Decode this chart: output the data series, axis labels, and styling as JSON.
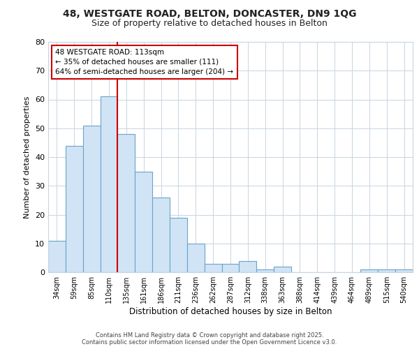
{
  "title_line1": "48, WESTGATE ROAD, BELTON, DONCASTER, DN9 1QG",
  "title_line2": "Size of property relative to detached houses in Belton",
  "xlabel": "Distribution of detached houses by size in Belton",
  "ylabel": "Number of detached properties",
  "categories": [
    "34sqm",
    "59sqm",
    "85sqm",
    "110sqm",
    "135sqm",
    "161sqm",
    "186sqm",
    "211sqm",
    "236sqm",
    "262sqm",
    "287sqm",
    "312sqm",
    "338sqm",
    "363sqm",
    "388sqm",
    "414sqm",
    "439sqm",
    "464sqm",
    "489sqm",
    "515sqm",
    "540sqm"
  ],
  "values": [
    11,
    44,
    51,
    61,
    48,
    35,
    26,
    19,
    10,
    3,
    3,
    4,
    1,
    2,
    0,
    0,
    0,
    0,
    1,
    1,
    1
  ],
  "bar_color": "#d0e4f5",
  "bar_edge_color": "#6ba3c8",
  "grid_color": "#c8d4e0",
  "background_color": "#ffffff",
  "fig_bg_color": "#ffffff",
  "red_line_index": 3,
  "annotation_text": "48 WESTGATE ROAD: 113sqm\n← 35% of detached houses are smaller (111)\n64% of semi-detached houses are larger (204) →",
  "annotation_box_facecolor": "#ffffff",
  "annotation_border_color": "#cc0000",
  "footer_text": "Contains HM Land Registry data © Crown copyright and database right 2025.\nContains public sector information licensed under the Open Government Licence v3.0.",
  "ylim_max": 80,
  "yticks": [
    0,
    10,
    20,
    30,
    40,
    50,
    60,
    70,
    80
  ]
}
